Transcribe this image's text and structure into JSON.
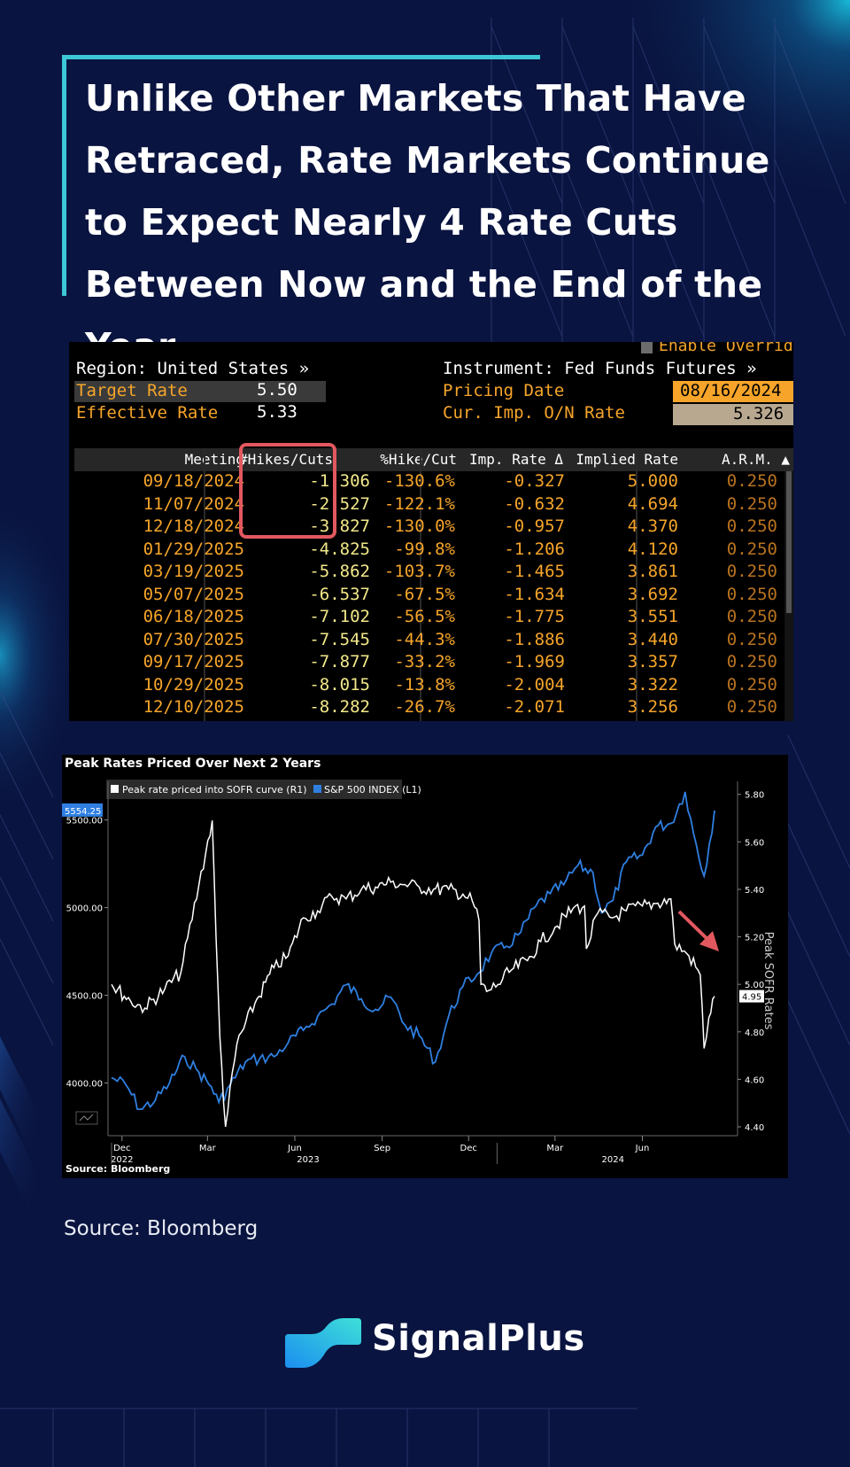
{
  "title": "Unlike Other Markets That Have Retraced, Rate Markets Continue to Expect Nearly 4 Rate Cuts Between Now and the End of the Year",
  "colors": {
    "background": "#0a1440",
    "accent": "#3cc7d6",
    "highlight": "#e3585f",
    "bbg_orange": "#f6a52a",
    "sp500_blue": "#2f7fe0",
    "sofr_white": "#ffffff"
  },
  "terminal": {
    "enable_overrides": "Enable Overrides",
    "region": "Region: United States »",
    "instrument": "Instrument: Fed Funds Futures »",
    "target_rate_label": "Target Rate",
    "target_rate_value": "5.50",
    "effective_rate_label": "Effective Rate",
    "effective_rate_value": "5.33",
    "pricing_date_label": "Pricing Date",
    "pricing_date_value": "08/16/2024",
    "cur_imp_label": "Cur. Imp. O/N Rate",
    "cur_imp_value": "5.326",
    "columns": [
      "Meeting",
      "#Hikes/Cuts",
      "%Hike/Cut",
      "Imp. Rate Δ",
      "Implied Rate",
      "A.R.M. ▲"
    ],
    "rows": [
      [
        "09/18/2024",
        "-1.306",
        "-130.6%",
        "-0.327",
        "5.000",
        "0.250"
      ],
      [
        "11/07/2024",
        "-2.527",
        "-122.1%",
        "-0.632",
        "4.694",
        "0.250"
      ],
      [
        "12/18/2024",
        "-3.827",
        "-130.0%",
        "-0.957",
        "4.370",
        "0.250"
      ],
      [
        "01/29/2025",
        "-4.825",
        "-99.8%",
        "-1.206",
        "4.120",
        "0.250"
      ],
      [
        "03/19/2025",
        "-5.862",
        "-103.7%",
        "-1.465",
        "3.861",
        "0.250"
      ],
      [
        "05/07/2025",
        "-6.537",
        "-67.5%",
        "-1.634",
        "3.692",
        "0.250"
      ],
      [
        "06/18/2025",
        "-7.102",
        "-56.5%",
        "-1.775",
        "3.551",
        "0.250"
      ],
      [
        "07/30/2025",
        "-7.545",
        "-44.3%",
        "-1.886",
        "3.440",
        "0.250"
      ],
      [
        "09/17/2025",
        "-7.877",
        "-33.2%",
        "-1.969",
        "3.357",
        "0.250"
      ],
      [
        "10/29/2025",
        "-8.015",
        "-13.8%",
        "-2.004",
        "3.322",
        "0.250"
      ],
      [
        "12/10/2025",
        "-8.282",
        "-26.7%",
        "-2.071",
        "3.256",
        "0.250"
      ]
    ]
  },
  "chart_data": {
    "type": "line",
    "title": "Peak Rates Priced Over Next 2 Years",
    "source_label": "Source: Bloomberg",
    "x_ticks": [
      "Dec",
      "Mar",
      "Jun",
      "Sep",
      "Dec",
      "Mar",
      "Jun"
    ],
    "x_years": [
      "2022",
      "2023",
      "2024"
    ],
    "left_axis": {
      "ticks": [
        "4000.00",
        "4500.00",
        "5000.00",
        "5500.00"
      ],
      "ylim": [
        3750,
        5700
      ]
    },
    "right_axis": {
      "label": "Peak SOFR Rates",
      "ticks": [
        "4.40",
        "4.60",
        "4.80",
        "5.00",
        "5.20",
        "5.40",
        "5.60",
        "5.80"
      ],
      "ylim": [
        4.4,
        5.84
      ]
    },
    "last_value_left": "5554.25",
    "last_value_right": "4.95",
    "series": [
      {
        "name": "Peak rate priced into SOFR curve (R1)",
        "axis": "right",
        "color": "#ffffff",
        "x": [
          "2022-11-20",
          "2022-12-10",
          "2022-12-25",
          "2023-01-15",
          "2023-02-01",
          "2023-02-20",
          "2023-03-06",
          "2023-03-10",
          "2023-03-14",
          "2023-03-20",
          "2023-04-01",
          "2023-04-20",
          "2023-05-10",
          "2023-05-25",
          "2023-06-10",
          "2023-06-25",
          "2023-07-10",
          "2023-07-25",
          "2023-08-10",
          "2023-08-25",
          "2023-09-10",
          "2023-09-25",
          "2023-10-10",
          "2023-10-25",
          "2023-11-10",
          "2023-11-25",
          "2023-12-05",
          "2023-12-12",
          "2023-12-14",
          "2023-12-20",
          "2024-01-01",
          "2024-01-15",
          "2024-02-01",
          "2024-02-15",
          "2024-03-01",
          "2024-03-20",
          "2024-04-01",
          "2024-04-03",
          "2024-04-15",
          "2024-04-30",
          "2024-05-15",
          "2024-06-01",
          "2024-06-15",
          "2024-07-01",
          "2024-07-05",
          "2024-07-20",
          "2024-08-01",
          "2024-08-05",
          "2024-08-10",
          "2024-08-16"
        ],
        "values": [
          5.0,
          4.93,
          4.9,
          4.98,
          5.05,
          5.42,
          5.69,
          5.2,
          4.78,
          4.4,
          4.75,
          4.92,
          5.07,
          5.12,
          5.28,
          5.31,
          5.37,
          5.36,
          5.4,
          5.41,
          5.43,
          5.42,
          5.41,
          5.4,
          5.4,
          5.38,
          5.35,
          5.27,
          5.0,
          4.97,
          5.0,
          5.06,
          5.1,
          5.18,
          5.24,
          5.32,
          5.33,
          5.15,
          5.3,
          5.28,
          5.31,
          5.33,
          5.34,
          5.36,
          5.17,
          5.12,
          5.04,
          4.73,
          4.86,
          4.95
        ]
      },
      {
        "name": "S&P 500 INDEX (L1)",
        "axis": "left",
        "color": "#2f7fe0",
        "x": [
          "2022-11-20",
          "2022-12-05",
          "2022-12-20",
          "2023-01-05",
          "2023-01-20",
          "2023-02-05",
          "2023-02-20",
          "2023-03-05",
          "2023-03-13",
          "2023-03-25",
          "2023-04-10",
          "2023-04-25",
          "2023-05-10",
          "2023-05-25",
          "2023-06-10",
          "2023-06-25",
          "2023-07-10",
          "2023-07-25",
          "2023-08-10",
          "2023-08-25",
          "2023-09-10",
          "2023-09-25",
          "2023-10-10",
          "2023-10-27",
          "2023-11-10",
          "2023-11-25",
          "2023-12-10",
          "2023-12-25",
          "2024-01-10",
          "2024-01-25",
          "2024-02-10",
          "2024-02-25",
          "2024-03-10",
          "2024-03-25",
          "2024-04-10",
          "2024-04-19",
          "2024-05-01",
          "2024-05-15",
          "2024-06-01",
          "2024-06-15",
          "2024-07-01",
          "2024-07-16",
          "2024-07-25",
          "2024-08-05",
          "2024-08-16"
        ],
        "values": [
          4030,
          3990,
          3850,
          3900,
          4000,
          4150,
          4060,
          3980,
          3890,
          3990,
          4120,
          4140,
          4150,
          4230,
          4300,
          4380,
          4450,
          4560,
          4480,
          4420,
          4490,
          4330,
          4270,
          4120,
          4380,
          4550,
          4620,
          4740,
          4780,
          4860,
          5010,
          5080,
          5130,
          5240,
          5200,
          4970,
          5040,
          5260,
          5300,
          5460,
          5480,
          5660,
          5420,
          5180,
          5554
        ]
      }
    ]
  },
  "source": "Source: Bloomberg",
  "brand": "SignalPlus",
  "icons": {
    "brand_logo": "signalplus-logo-icon",
    "arrow": "red-down-arrow-icon"
  }
}
